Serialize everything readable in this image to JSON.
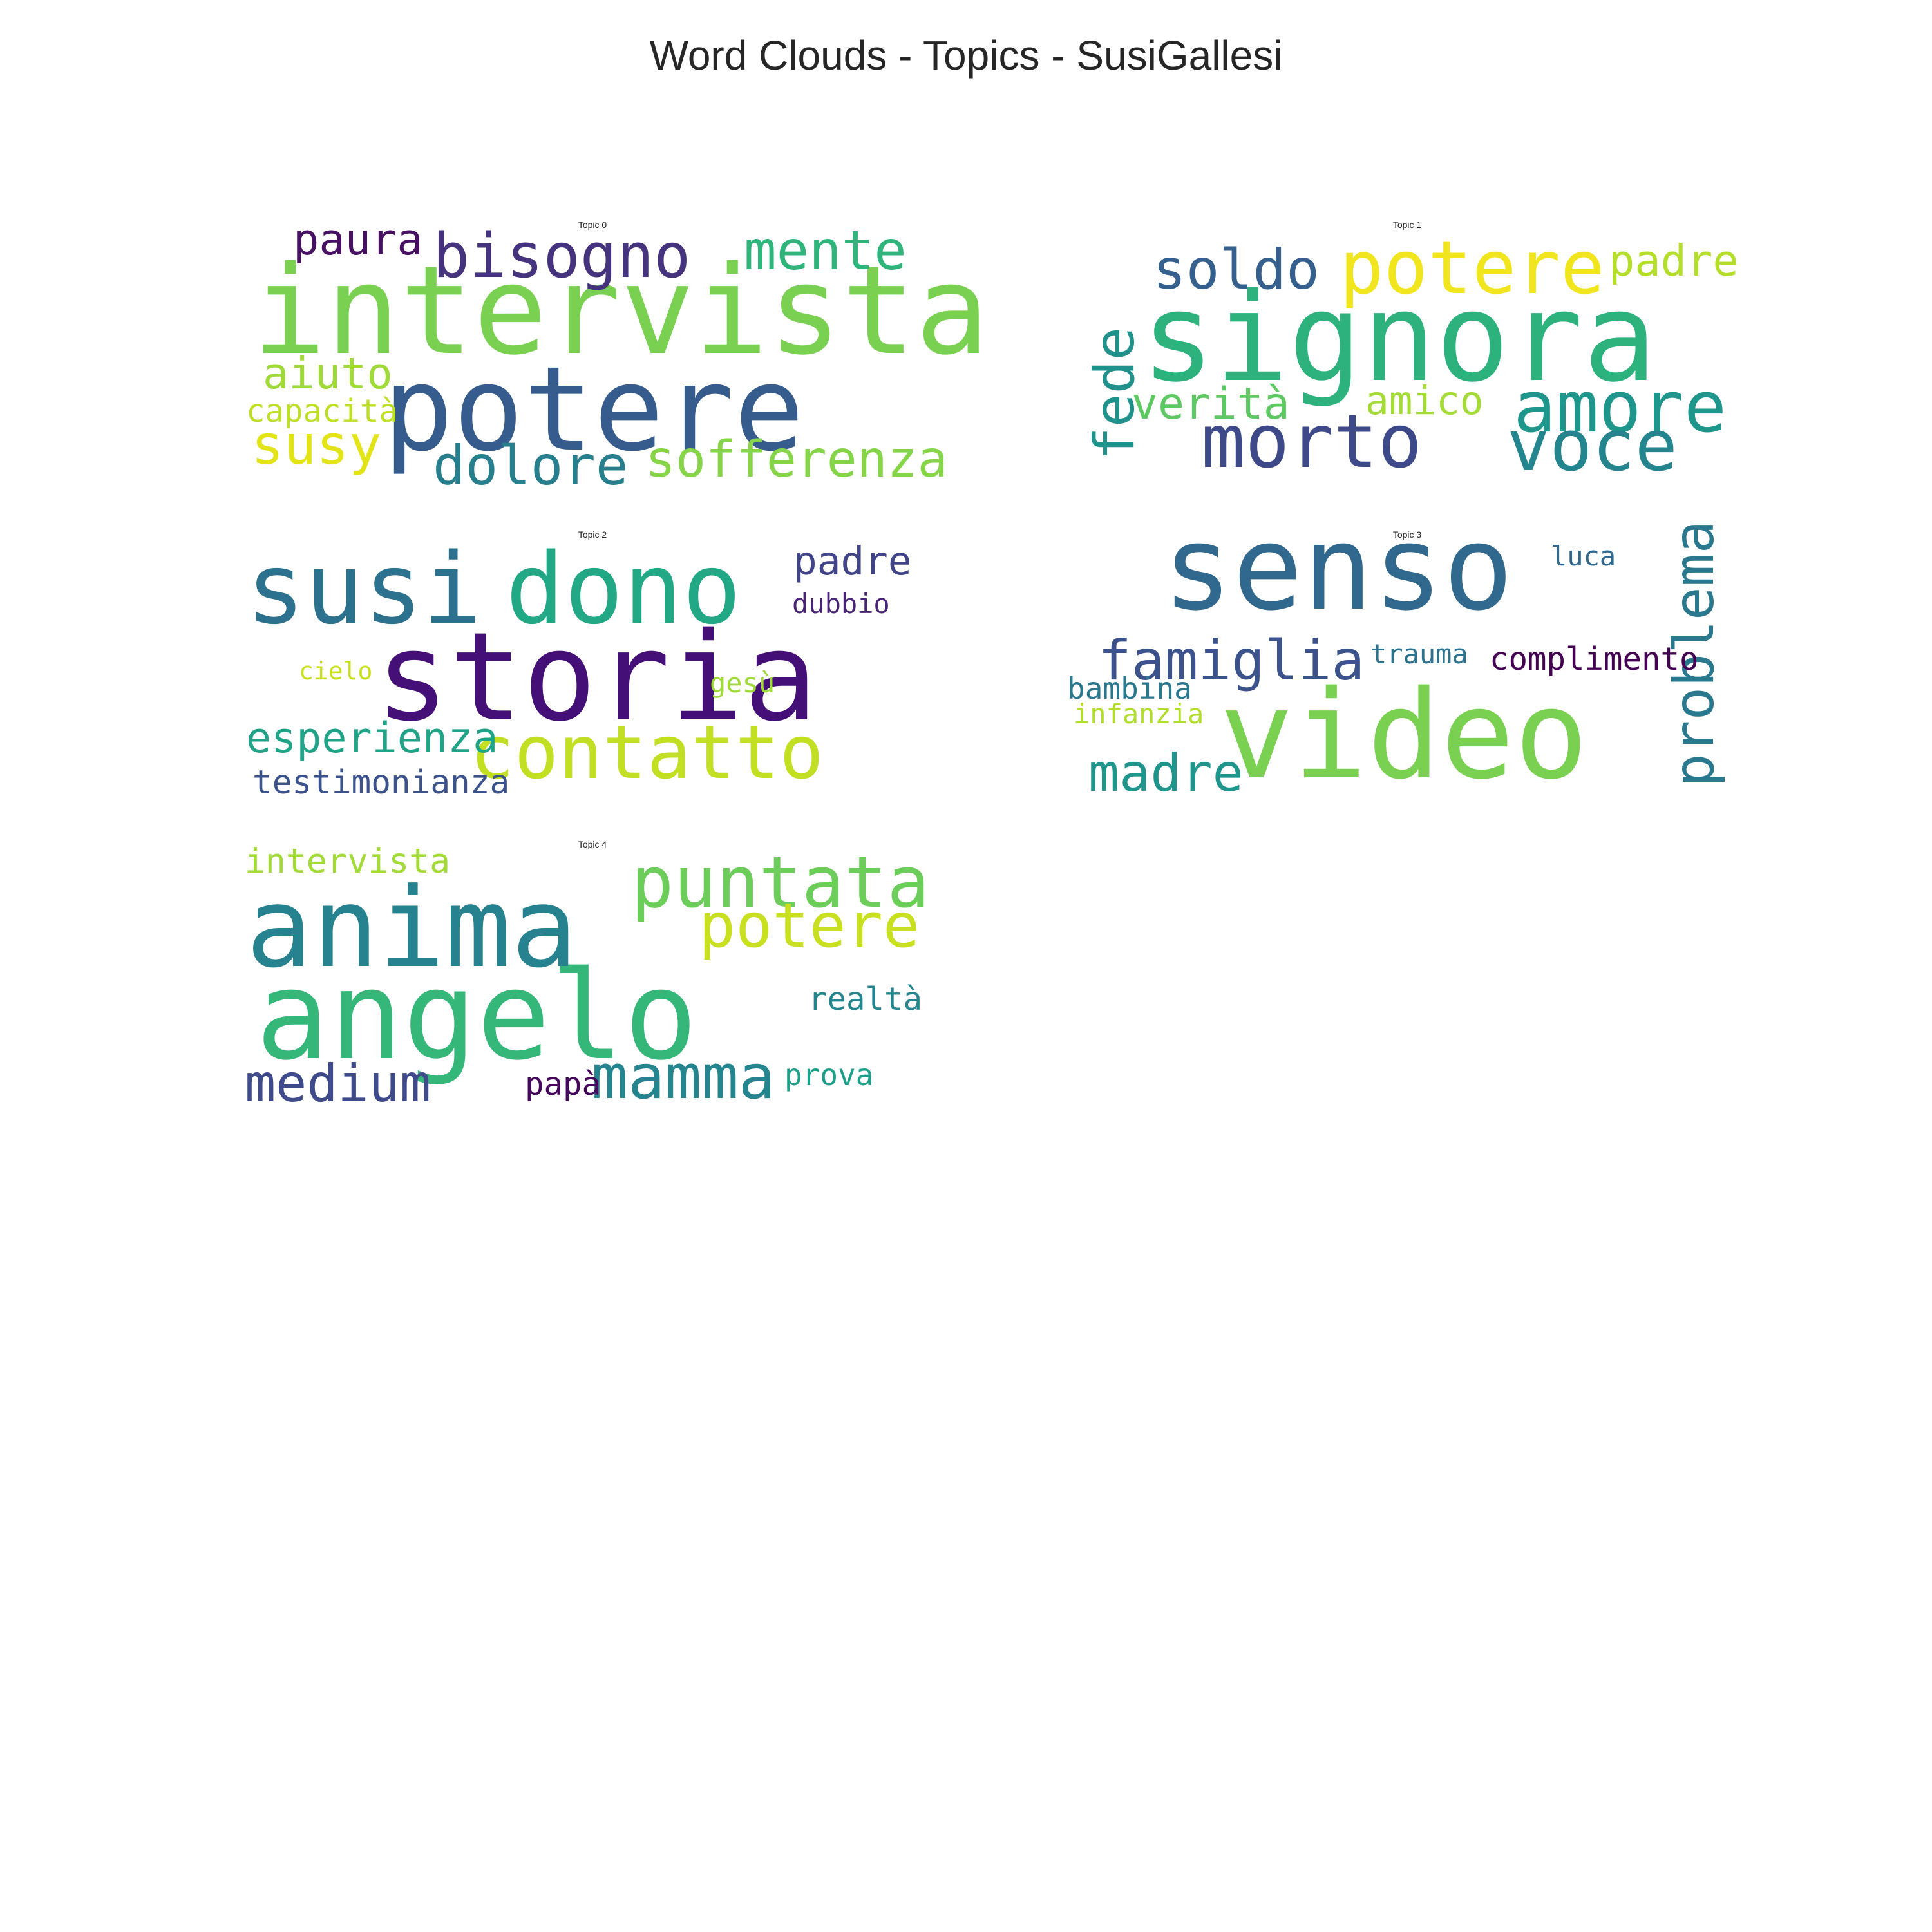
{
  "chart_data": {
    "type": "wordcloud",
    "title": "Word Clouds - Topics - SusiGallesi",
    "panels": [
      {
        "title": "Topic 0",
        "words": [
          {
            "text": "intervista",
            "weight": 1.0,
            "color": "#7ad151",
            "rotate": false
          },
          {
            "text": "potere",
            "weight": 0.95,
            "color": "#365c8d",
            "rotate": false
          },
          {
            "text": "bisogno",
            "weight": 0.5,
            "color": "#46337e",
            "rotate": false
          },
          {
            "text": "mente",
            "weight": 0.44,
            "color": "#2fb47c",
            "rotate": false
          },
          {
            "text": "paura",
            "weight": 0.35,
            "color": "#471063",
            "rotate": false
          },
          {
            "text": "aiuto",
            "weight": 0.35,
            "color": "#a0da39",
            "rotate": false
          },
          {
            "text": "capacità",
            "weight": 0.26,
            "color": "#bddf26",
            "rotate": false
          },
          {
            "text": "susy",
            "weight": 0.44,
            "color": "#e2e418",
            "rotate": false
          },
          {
            "text": "dolore",
            "weight": 0.44,
            "color": "#277f8e",
            "rotate": false
          },
          {
            "text": "sofferenza",
            "weight": 0.41,
            "color": "#86d549",
            "rotate": false
          }
        ]
      },
      {
        "title": "Topic 1",
        "words": [
          {
            "text": "signora",
            "weight": 1.0,
            "color": "#2db27d",
            "rotate": false
          },
          {
            "text": "potere",
            "weight": 0.6,
            "color": "#f1e51d",
            "rotate": false
          },
          {
            "text": "soldo",
            "weight": 0.45,
            "color": "#355f8d",
            "rotate": false
          },
          {
            "text": "padre",
            "weight": 0.35,
            "color": "#b5de2b",
            "rotate": false
          },
          {
            "text": "fede",
            "weight": 0.45,
            "color": "#21918c",
            "rotate": true
          },
          {
            "text": "verità",
            "weight": 0.36,
            "color": "#5ec962",
            "rotate": false
          },
          {
            "text": "amico",
            "weight": 0.32,
            "color": "#a5db36",
            "rotate": false
          },
          {
            "text": "amore",
            "weight": 0.58,
            "color": "#1f968b",
            "rotate": false
          },
          {
            "text": "morto",
            "weight": 0.6,
            "color": "#3e4989",
            "rotate": false
          },
          {
            "text": "voce",
            "weight": 0.58,
            "color": "#25858e",
            "rotate": false
          }
        ]
      },
      {
        "title": "Topic 2",
        "words": [
          {
            "text": "storia",
            "weight": 1.0,
            "color": "#440f76",
            "rotate": false
          },
          {
            "text": "susi",
            "weight": 0.8,
            "color": "#2c728e",
            "rotate": false
          },
          {
            "text": "dono",
            "weight": 0.8,
            "color": "#22a884",
            "rotate": false
          },
          {
            "text": "padre",
            "weight": 0.32,
            "color": "#414487",
            "rotate": false
          },
          {
            "text": "dubbio",
            "weight": 0.22,
            "color": "#482475",
            "rotate": false
          },
          {
            "text": "cielo",
            "weight": 0.2,
            "color": "#c8e020",
            "rotate": false
          },
          {
            "text": "gesù",
            "weight": 0.22,
            "color": "#9fda3a",
            "rotate": false
          },
          {
            "text": "contatto",
            "weight": 0.6,
            "color": "#c2df23",
            "rotate": false
          },
          {
            "text": "esperienza",
            "weight": 0.34,
            "color": "#20a386",
            "rotate": false
          },
          {
            "text": "testimonianza",
            "weight": 0.27,
            "color": "#3b528b",
            "rotate": false
          }
        ]
      },
      {
        "title": "Topic 3",
        "words": [
          {
            "text": "video",
            "weight": 1.0,
            "color": "#7ad151",
            "rotate": false
          },
          {
            "text": "senso",
            "weight": 0.95,
            "color": "#31688e",
            "rotate": false
          },
          {
            "text": "luca",
            "weight": 0.22,
            "color": "#31688e",
            "rotate": false
          },
          {
            "text": "problema",
            "weight": 0.45,
            "color": "#2a788e",
            "rotate": true
          },
          {
            "text": "famiglia",
            "weight": 0.45,
            "color": "#3b528b",
            "rotate": false
          },
          {
            "text": "trauma",
            "weight": 0.22,
            "color": "#2c728e",
            "rotate": false
          },
          {
            "text": "complimento",
            "weight": 0.26,
            "color": "#440154",
            "rotate": false
          },
          {
            "text": "bambina",
            "weight": 0.24,
            "color": "#2a788e",
            "rotate": false
          },
          {
            "text": "infanzia",
            "weight": 0.22,
            "color": "#b2dd2d",
            "rotate": false
          },
          {
            "text": "madre",
            "weight": 0.42,
            "color": "#1f958b",
            "rotate": false
          }
        ]
      },
      {
        "title": "Topic 4",
        "words": [
          {
            "text": "angelo",
            "weight": 1.0,
            "color": "#35b779",
            "rotate": false
          },
          {
            "text": "anima",
            "weight": 0.9,
            "color": "#26828e",
            "rotate": false
          },
          {
            "text": "puntata",
            "weight": 0.58,
            "color": "#6ccd5a",
            "rotate": false
          },
          {
            "text": "potere",
            "weight": 0.5,
            "color": "#c8e020",
            "rotate": false
          },
          {
            "text": "intervista",
            "weight": 0.28,
            "color": "#a2da37",
            "rotate": false
          },
          {
            "text": "realtà",
            "weight": 0.26,
            "color": "#25858e",
            "rotate": false
          },
          {
            "text": "medium",
            "weight": 0.42,
            "color": "#3e4a89",
            "rotate": false
          },
          {
            "text": "mamma",
            "weight": 0.5,
            "color": "#25858e",
            "rotate": false
          },
          {
            "text": "papà",
            "weight": 0.26,
            "color": "#46085c",
            "rotate": false
          },
          {
            "text": "prova",
            "weight": 0.24,
            "color": "#1f9e89",
            "rotate": false
          }
        ]
      }
    ]
  }
}
